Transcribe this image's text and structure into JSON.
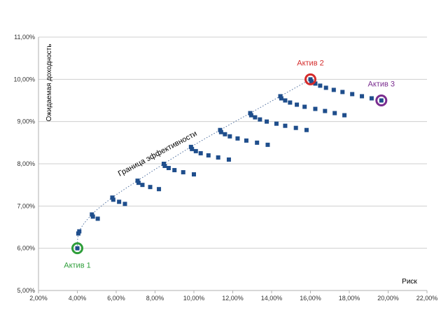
{
  "chart_data": {
    "type": "scatter",
    "xlabel": "Риск",
    "ylabel": "Ожидаемая доходность",
    "xlim": [
      0.02,
      0.22
    ],
    "ylim": [
      0.05,
      0.11
    ],
    "x_ticks": [
      "2,00%",
      "4,00%",
      "6,00%",
      "8,00%",
      "10,00%",
      "12,00%",
      "14,00%",
      "16,00%",
      "18,00%",
      "20,00%",
      "22,00%"
    ],
    "y_ticks": [
      "5,00%",
      "6,00%",
      "7,00%",
      "8,00%",
      "9,00%",
      "10,00%",
      "11,00%"
    ],
    "grid": "horizontal",
    "series": [
      {
        "color": "#1f4e8c",
        "marker": "square",
        "points": [
          {
            "x": 0.04,
            "y": 0.06
          },
          {
            "x": 0.0405,
            "y": 0.0635
          },
          {
            "x": 0.041,
            "y": 0.064
          },
          {
            "x": 0.0475,
            "y": 0.068
          },
          {
            "x": 0.048,
            "y": 0.0675
          },
          {
            "x": 0.0505,
            "y": 0.067
          },
          {
            "x": 0.058,
            "y": 0.072
          },
          {
            "x": 0.0585,
            "y": 0.0715
          },
          {
            "x": 0.0615,
            "y": 0.071
          },
          {
            "x": 0.0645,
            "y": 0.0705
          },
          {
            "x": 0.071,
            "y": 0.076
          },
          {
            "x": 0.0715,
            "y": 0.0755
          },
          {
            "x": 0.0735,
            "y": 0.075
          },
          {
            "x": 0.0775,
            "y": 0.0745
          },
          {
            "x": 0.082,
            "y": 0.074
          },
          {
            "x": 0.0845,
            "y": 0.08
          },
          {
            "x": 0.085,
            "y": 0.0795
          },
          {
            "x": 0.087,
            "y": 0.079
          },
          {
            "x": 0.09,
            "y": 0.0785
          },
          {
            "x": 0.0945,
            "y": 0.078
          },
          {
            "x": 0.1,
            "y": 0.0775
          },
          {
            "x": 0.0985,
            "y": 0.084
          },
          {
            "x": 0.099,
            "y": 0.0835
          },
          {
            "x": 0.101,
            "y": 0.083
          },
          {
            "x": 0.1035,
            "y": 0.0825
          },
          {
            "x": 0.1075,
            "y": 0.082
          },
          {
            "x": 0.1125,
            "y": 0.0815
          },
          {
            "x": 0.118,
            "y": 0.081
          },
          {
            "x": 0.1135,
            "y": 0.088
          },
          {
            "x": 0.114,
            "y": 0.0875
          },
          {
            "x": 0.116,
            "y": 0.087
          },
          {
            "x": 0.1185,
            "y": 0.0865
          },
          {
            "x": 0.1225,
            "y": 0.086
          },
          {
            "x": 0.127,
            "y": 0.0855
          },
          {
            "x": 0.1325,
            "y": 0.085
          },
          {
            "x": 0.138,
            "y": 0.0845
          },
          {
            "x": 0.129,
            "y": 0.092
          },
          {
            "x": 0.1295,
            "y": 0.0915
          },
          {
            "x": 0.1315,
            "y": 0.091
          },
          {
            "x": 0.134,
            "y": 0.0905
          },
          {
            "x": 0.1375,
            "y": 0.09
          },
          {
            "x": 0.1425,
            "y": 0.0895
          },
          {
            "x": 0.147,
            "y": 0.089
          },
          {
            "x": 0.1525,
            "y": 0.0885
          },
          {
            "x": 0.158,
            "y": 0.088
          },
          {
            "x": 0.1445,
            "y": 0.096
          },
          {
            "x": 0.145,
            "y": 0.0955
          },
          {
            "x": 0.147,
            "y": 0.095
          },
          {
            "x": 0.1495,
            "y": 0.0945
          },
          {
            "x": 0.153,
            "y": 0.094
          },
          {
            "x": 0.157,
            "y": 0.0935
          },
          {
            "x": 0.1625,
            "y": 0.093
          },
          {
            "x": 0.1675,
            "y": 0.0925
          },
          {
            "x": 0.1725,
            "y": 0.092
          },
          {
            "x": 0.1775,
            "y": 0.0915
          },
          {
            "x": 0.16,
            "y": 0.1
          },
          {
            "x": 0.1605,
            "y": 0.0995
          },
          {
            "x": 0.1625,
            "y": 0.099
          },
          {
            "x": 0.165,
            "y": 0.0985
          },
          {
            "x": 0.168,
            "y": 0.098
          },
          {
            "x": 0.172,
            "y": 0.0975
          },
          {
            "x": 0.1765,
            "y": 0.097
          },
          {
            "x": 0.1815,
            "y": 0.0965
          },
          {
            "x": 0.1865,
            "y": 0.096
          },
          {
            "x": 0.1915,
            "y": 0.0955
          },
          {
            "x": 0.1965,
            "y": 0.095
          }
        ]
      }
    ],
    "frontier": {
      "label": "Граница эффективности",
      "style": "dotted",
      "color": "#4f6f9f",
      "points": [
        {
          "x": 0.04,
          "y": 0.06
        },
        {
          "x": 0.041,
          "y": 0.064
        },
        {
          "x": 0.0475,
          "y": 0.068
        },
        {
          "x": 0.058,
          "y": 0.072
        },
        {
          "x": 0.071,
          "y": 0.076
        },
        {
          "x": 0.0845,
          "y": 0.08
        },
        {
          "x": 0.0985,
          "y": 0.084
        },
        {
          "x": 0.1135,
          "y": 0.088
        },
        {
          "x": 0.129,
          "y": 0.092
        },
        {
          "x": 0.1445,
          "y": 0.096
        },
        {
          "x": 0.16,
          "y": 0.1
        }
      ]
    },
    "annotations": [
      {
        "label": "Актив 1",
        "x": 0.04,
        "y": 0.06,
        "color": "#2e9e3a",
        "label_pos": "below"
      },
      {
        "label": "Актив 2",
        "x": 0.16,
        "y": 0.1,
        "color": "#d42a2a",
        "label_pos": "above"
      },
      {
        "label": "Актив 3",
        "x": 0.1965,
        "y": 0.095,
        "color": "#7a2c8f",
        "label_pos": "above"
      }
    ]
  }
}
